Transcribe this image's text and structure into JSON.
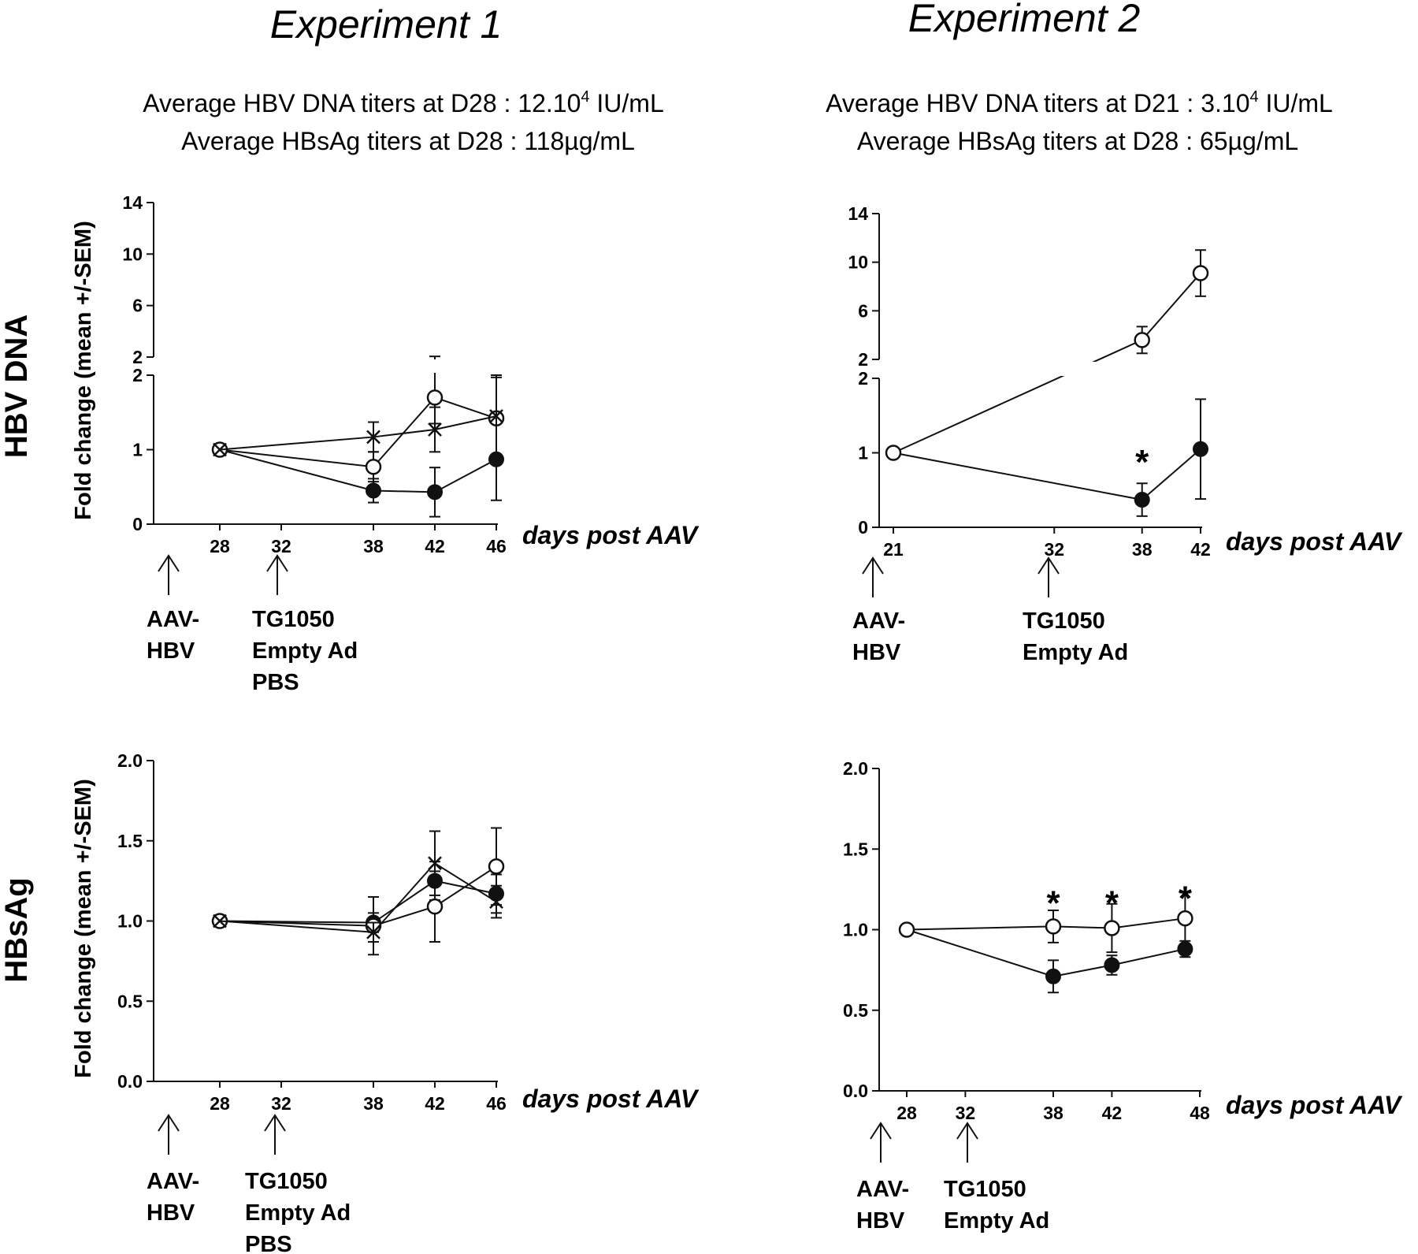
{
  "headers": {
    "exp1": {
      "title": "Experiment 1",
      "line1_pre": "Average HBV DNA titers at D28 : 12.10",
      "line1_sup": "4",
      "line1_post": " IU/mL",
      "line2": "Average HBsAg titers at D28 : 118µg/mL"
    },
    "exp2": {
      "title": "Experiment 2",
      "line1_pre": "Average HBV DNA titers at D21 : 3.10",
      "line1_sup": "4",
      "line1_post": " IU/mL",
      "line2": "Average HBsAg titers at D28 : 65µg/mL"
    }
  },
  "row_labels": {
    "top": "HBV DNA",
    "bottom": "HBsAg"
  },
  "ylabel": "Fold change (mean +/-SEM)",
  "xlabel": "days post AAV",
  "annotations": {
    "aav": [
      "AAV-",
      "HBV"
    ],
    "treat_exp1": [
      "TG1050",
      "Empty Ad",
      "PBS"
    ],
    "treat_exp2": [
      "TG1050",
      "Empty Ad"
    ]
  },
  "chart_data": [
    {
      "id": "exp1_dna",
      "type": "line",
      "panel": "Experiment 1 - HBV DNA",
      "xlabel": "days post AAV",
      "ylabel": "Fold change (mean +/-SEM)",
      "y_axis_break": true,
      "ylim_lower": [
        0,
        2
      ],
      "ylim_upper": [
        2,
        14
      ],
      "yticks_lower": [
        "0",
        "1",
        "2"
      ],
      "yticks_upper": [
        "2",
        "6",
        "10",
        "14"
      ],
      "xticks": [
        28,
        32,
        38,
        42,
        46
      ],
      "series": [
        {
          "marker": "filled-circle",
          "x": [
            28,
            38,
            42,
            46
          ],
          "y": [
            1.0,
            0.45,
            0.43,
            0.87
          ],
          "err": [
            0.0,
            0.16,
            0.33,
            0.55
          ]
        },
        {
          "marker": "open-circle",
          "x": [
            28,
            38,
            42,
            46
          ],
          "y": [
            1.0,
            0.77,
            1.7,
            1.42
          ],
          "err": [
            0.0,
            0.2,
            0.35,
            0.55
          ]
        },
        {
          "marker": "cross",
          "x": [
            28,
            38,
            42,
            46
          ],
          "y": [
            1.0,
            1.17,
            1.27,
            1.45
          ],
          "err": [
            0.0,
            0.2,
            0.3,
            0.55
          ]
        }
      ],
      "annotations": []
    },
    {
      "id": "exp2_dna",
      "type": "line",
      "panel": "Experiment 2 - HBV DNA",
      "xlabel": "days post AAV",
      "ylabel": "",
      "y_axis_break": true,
      "ylim_lower": [
        0,
        2
      ],
      "ylim_upper": [
        2,
        14
      ],
      "yticks_lower": [
        "0",
        "1",
        "2"
      ],
      "yticks_upper": [
        "2",
        "6",
        "10",
        "14"
      ],
      "xticks": [
        21,
        32,
        38,
        42
      ],
      "series": [
        {
          "marker": "filled-circle",
          "x": [
            21,
            38,
            42
          ],
          "y": [
            1.0,
            0.37,
            1.05
          ],
          "err": [
            0.0,
            0.22,
            0.67
          ]
        },
        {
          "marker": "open-circle",
          "x": [
            21,
            38,
            42
          ],
          "y": [
            1.0,
            3.6,
            9.1
          ],
          "err": [
            0.0,
            1.1,
            1.9
          ]
        }
      ],
      "annotations": [
        {
          "text": "*",
          "x": 38,
          "y": 0.95
        }
      ]
    },
    {
      "id": "exp1_hbsag",
      "type": "line",
      "panel": "Experiment 1 - HBsAg",
      "xlabel": "days post AAV",
      "ylabel": "Fold change (mean +/-SEM)",
      "ylim": [
        0,
        2
      ],
      "yticks": [
        "0.0",
        "0.5",
        "1.0",
        "1.5",
        "2.0"
      ],
      "xticks": [
        28,
        32,
        38,
        42,
        46
      ],
      "series": [
        {
          "marker": "filled-circle",
          "x": [
            28,
            38,
            42,
            46
          ],
          "y": [
            1.0,
            0.99,
            1.25,
            1.17
          ],
          "err": [
            0.0,
            0.06,
            0.12,
            0.12
          ]
        },
        {
          "marker": "open-circle",
          "x": [
            28,
            38,
            42,
            46
          ],
          "y": [
            1.0,
            0.97,
            1.09,
            1.34
          ],
          "err": [
            0.0,
            0.18,
            0.22,
            0.24
          ]
        },
        {
          "marker": "cross",
          "x": [
            28,
            38,
            42,
            46
          ],
          "y": [
            1.0,
            0.93,
            1.36,
            1.12
          ],
          "err": [
            0.0,
            0.06,
            0.2,
            0.1
          ]
        }
      ],
      "annotations": []
    },
    {
      "id": "exp2_hbsag",
      "type": "line",
      "panel": "Experiment 2 - HBsAg",
      "xlabel": "days post AAV",
      "ylabel": "",
      "ylim": [
        0,
        2
      ],
      "yticks": [
        "0.0",
        "0.5",
        "1.0",
        "1.5",
        "2.0"
      ],
      "xticks": [
        28,
        32,
        38,
        42,
        48
      ],
      "series": [
        {
          "marker": "filled-circle",
          "x": [
            28,
            38,
            42,
            47
          ],
          "y": [
            1.0,
            0.71,
            0.78,
            0.88
          ],
          "err": [
            0.0,
            0.1,
            0.06,
            0.05
          ]
        },
        {
          "marker": "open-circle",
          "x": [
            28,
            38,
            42,
            47
          ],
          "y": [
            1.0,
            1.02,
            1.01,
            1.07
          ],
          "err": [
            0.0,
            0.1,
            0.15,
            0.16
          ]
        }
      ],
      "annotations": [
        {
          "text": "*",
          "x": 38,
          "y": 1.2
        },
        {
          "text": "*",
          "x": 42,
          "y": 1.2
        },
        {
          "text": "*",
          "x": 47,
          "y": 1.23
        }
      ]
    }
  ]
}
